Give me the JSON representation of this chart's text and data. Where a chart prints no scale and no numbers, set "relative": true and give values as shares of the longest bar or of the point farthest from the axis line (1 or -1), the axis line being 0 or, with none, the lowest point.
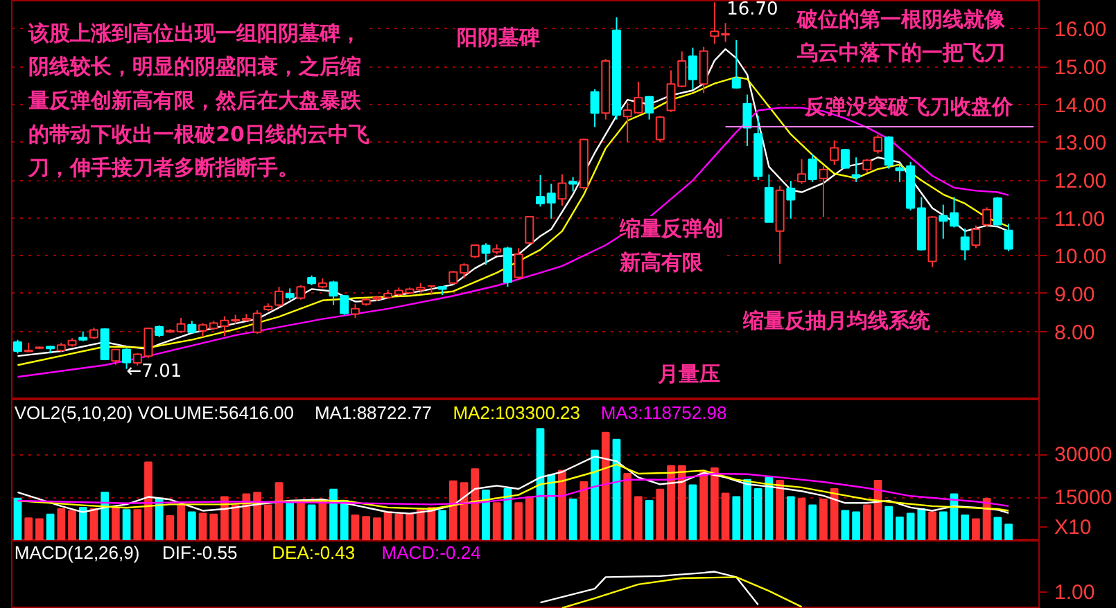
{
  "chart_data": [
    {
      "type": "candlestick",
      "categories": [
        null,
        null,
        null,
        null,
        null,
        null,
        null,
        null,
        null,
        null,
        null,
        null,
        null,
        null,
        null,
        null,
        null,
        null,
        null,
        null,
        null,
        null,
        null,
        null,
        null,
        null,
        null,
        null,
        null,
        null,
        null,
        null,
        null,
        null,
        null,
        null,
        null,
        null,
        null,
        null,
        null,
        null,
        null,
        null,
        null,
        null,
        null,
        null,
        null,
        null,
        null,
        null,
        null,
        null,
        null,
        null,
        null,
        null,
        null,
        null,
        null,
        null,
        null,
        null,
        null,
        null,
        null,
        null,
        null,
        null,
        null,
        null,
        null,
        null,
        null,
        null,
        null,
        null,
        null,
        null,
        null,
        null,
        null,
        null,
        null,
        null,
        null,
        null,
        null,
        null,
        null,
        null
      ],
      "ohlc": [
        [
          7.72,
          7.78,
          7.42,
          7.48
        ],
        [
          7.47,
          7.7,
          7.45,
          7.5
        ],
        [
          7.56,
          7.6,
          7.53,
          7.58
        ],
        [
          7.6,
          7.62,
          7.42,
          7.55
        ],
        [
          7.5,
          7.7,
          7.45,
          7.64
        ],
        [
          7.64,
          7.82,
          7.6,
          7.76
        ],
        [
          7.84,
          8.0,
          7.74,
          7.78
        ],
        [
          7.84,
          8.1,
          7.8,
          8.04
        ],
        [
          8.06,
          8.08,
          7.24,
          7.26
        ],
        [
          7.22,
          7.54,
          7.12,
          7.52
        ],
        [
          7.52,
          7.55,
          7.01,
          7.18
        ],
        [
          7.17,
          7.42,
          7.1,
          7.4
        ],
        [
          7.35,
          8.1,
          7.3,
          8.08
        ],
        [
          8.12,
          8.16,
          7.85,
          7.9
        ],
        [
          7.99,
          8.06,
          7.96,
          8.02
        ],
        [
          8.0,
          8.36,
          7.96,
          8.2
        ],
        [
          8.18,
          8.28,
          7.95,
          7.98
        ],
        [
          8.02,
          8.22,
          7.85,
          8.17
        ],
        [
          8.08,
          8.28,
          8.04,
          8.22
        ],
        [
          8.14,
          8.4,
          7.88,
          8.29
        ],
        [
          8.28,
          8.44,
          8.2,
          8.31
        ],
        [
          8.3,
          8.46,
          8.26,
          8.34
        ],
        [
          7.98,
          8.56,
          7.94,
          8.48
        ],
        [
          8.58,
          8.74,
          8.54,
          8.66
        ],
        [
          8.7,
          9.18,
          8.64,
          9.06
        ],
        [
          9.0,
          9.14,
          8.84,
          8.9
        ],
        [
          8.88,
          9.22,
          8.84,
          9.18
        ],
        [
          9.42,
          9.48,
          9.22,
          9.27
        ],
        [
          9.18,
          9.4,
          9.14,
          9.28
        ],
        [
          9.3,
          9.34,
          8.7,
          8.94
        ],
        [
          8.94,
          8.96,
          8.44,
          8.48
        ],
        [
          8.46,
          8.72,
          8.36,
          8.6
        ],
        [
          8.72,
          8.88,
          8.68,
          8.84
        ],
        [
          8.86,
          8.94,
          8.8,
          8.9
        ],
        [
          8.9,
          9.1,
          8.86,
          9.0
        ],
        [
          8.98,
          9.16,
          8.94,
          9.08
        ],
        [
          9.02,
          9.16,
          8.98,
          9.12
        ],
        [
          9.1,
          9.28,
          9.06,
          9.16
        ],
        [
          9.2,
          9.22,
          8.96,
          9.2
        ],
        [
          9.18,
          9.2,
          8.96,
          9.12
        ],
        [
          9.28,
          9.6,
          9.24,
          9.57
        ],
        [
          9.55,
          9.8,
          9.4,
          9.76
        ],
        [
          9.98,
          10.3,
          9.94,
          10.28
        ],
        [
          10.27,
          10.33,
          9.76,
          10.07
        ],
        [
          10.1,
          10.3,
          10.04,
          10.18
        ],
        [
          10.2,
          10.24,
          9.18,
          9.3
        ],
        [
          9.43,
          10.2,
          9.38,
          10.04
        ],
        [
          10.34,
          11.05,
          10.3,
          11.03
        ],
        [
          11.56,
          12.13,
          11.3,
          11.38
        ],
        [
          11.65,
          11.9,
          10.98,
          11.4
        ],
        [
          11.5,
          12.15,
          11.32,
          11.92
        ],
        [
          11.96,
          12.08,
          11.7,
          11.9
        ],
        [
          11.8,
          13.1,
          11.75,
          13.07
        ],
        [
          14.33,
          14.4,
          13.4,
          13.77
        ],
        [
          13.77,
          15.2,
          13.6,
          15.15
        ],
        [
          15.96,
          16.3,
          13.6,
          13.72
        ],
        [
          13.68,
          14.05,
          13.0,
          13.85
        ],
        [
          13.78,
          14.6,
          13.75,
          14.18
        ],
        [
          14.2,
          14.22,
          13.6,
          13.78
        ],
        [
          13.07,
          13.7,
          13.0,
          13.66
        ],
        [
          13.84,
          14.9,
          13.8,
          14.54
        ],
        [
          14.48,
          15.4,
          14.45,
          15.15
        ],
        [
          15.27,
          15.5,
          14.4,
          14.66
        ],
        [
          14.54,
          15.52,
          14.3,
          15.41
        ],
        [
          15.8,
          16.7,
          15.6,
          15.93
        ],
        [
          15.84,
          16.15,
          15.65,
          15.86
        ],
        [
          14.68,
          15.7,
          14.42,
          14.44
        ],
        [
          14.02,
          14.26,
          12.9,
          13.38
        ],
        [
          13.22,
          13.7,
          12.0,
          12.1
        ],
        [
          11.8,
          12.15,
          10.89,
          10.89
        ],
        [
          10.65,
          11.85,
          9.79,
          11.73
        ],
        [
          11.78,
          11.98,
          10.98,
          11.48
        ],
        [
          11.96,
          12.55,
          11.9,
          12.16
        ],
        [
          12.55,
          12.68,
          11.95,
          12.02
        ],
        [
          12.04,
          12.4,
          11.03,
          12.28
        ],
        [
          12.52,
          13.05,
          12.4,
          12.85
        ],
        [
          12.8,
          12.82,
          12.3,
          12.32
        ],
        [
          12.14,
          12.6,
          11.95,
          12.08
        ],
        [
          12.28,
          12.56,
          12.2,
          12.52
        ],
        [
          12.77,
          13.2,
          12.7,
          13.13
        ],
        [
          13.13,
          13.16,
          12.3,
          12.4
        ],
        [
          12.32,
          12.45,
          11.95,
          12.25
        ],
        [
          12.37,
          12.48,
          11.2,
          11.26
        ],
        [
          11.26,
          11.55,
          10.14,
          10.16
        ],
        [
          9.85,
          11.05,
          9.7,
          11.02
        ],
        [
          11.06,
          11.35,
          10.45,
          10.92
        ],
        [
          11.13,
          11.55,
          10.75,
          10.79
        ],
        [
          10.49,
          10.72,
          9.88,
          10.16
        ],
        [
          10.28,
          10.8,
          10.2,
          10.7
        ],
        [
          10.82,
          11.28,
          10.78,
          11.22
        ],
        [
          11.52,
          11.55,
          10.8,
          10.82
        ],
        [
          10.67,
          10.85,
          10.12,
          10.18
        ]
      ],
      "colors": [
        "#00ffff",
        "#ff3232",
        "#ff3232",
        "#00ffff",
        "#ff3232",
        "#ff3232",
        "#00ffff",
        "#ff3232",
        "#00ffff",
        "#ff3232",
        "#00ffff",
        "#ff3232",
        "#ff3232",
        "#00ffff",
        "#ff3232",
        "#ff3232",
        "#00ffff",
        "#ff3232",
        "#ff3232",
        "#ff3232",
        "#ff3232",
        "#ff3232",
        "#ff3232",
        "#ff3232",
        "#ff3232",
        "#00ffff",
        "#ff3232",
        "#00ffff",
        "#ff3232",
        "#00ffff",
        "#00ffff",
        "#ff3232",
        "#ff3232",
        "#ff3232",
        "#ff3232",
        "#ff3232",
        "#ff3232",
        "#ff3232",
        "#ff3232",
        "#00ffff",
        "#ff3232",
        "#ff3232",
        "#ff3232",
        "#00ffff",
        "#ff3232",
        "#00ffff",
        "#ff3232",
        "#ff3232",
        "#00ffff",
        "#00ffff",
        "#ff3232",
        "#00ffff",
        "#ff3232",
        "#00ffff",
        "#ff3232",
        "#00ffff",
        "#ff3232",
        "#ff3232",
        "#00ffff",
        "#ff3232",
        "#ff3232",
        "#ff3232",
        "#00ffff",
        "#ff3232",
        "#ff3232",
        "#ff3232",
        "#00ffff",
        "#00ffff",
        "#00ffff",
        "#00ffff",
        "#ff3232",
        "#00ffff",
        "#ff3232",
        "#00ffff",
        "#ff3232",
        "#ff3232",
        "#00ffff",
        "#00ffff",
        "#ff3232",
        "#ff3232",
        "#00ffff",
        "#00ffff",
        "#00ffff",
        "#00ffff",
        "#ff3232",
        "#00ffff",
        "#00ffff",
        "#00ffff",
        "#ff3232",
        "#ff3232",
        "#00ffff",
        "#00ffff"
      ],
      "series": [
        {
          "type": "line",
          "color": "#ffffff",
          "values": [
            7.35,
            null,
            null,
            null,
            7.48,
            null,
            null,
            null,
            7.72,
            null,
            7.6,
            null,
            7.54,
            7.66,
            null,
            null,
            7.96,
            null,
            null,
            8.15,
            null,
            null,
            8.33,
            null,
            8.63,
            null,
            null,
            9.12,
            null,
            9.06,
            null,
            8.79,
            null,
            8.82,
            null,
            8.96,
            null,
            null,
            9.12,
            null,
            9.24,
            null,
            9.67,
            null,
            9.98,
            null,
            10.04,
            null,
            10.52,
            10.7,
            null,
            11.62,
            null,
            12.72,
            13.21,
            13.7,
            14.12,
            null,
            14.0,
            null,
            14.24,
            null,
            14.37,
            14.55,
            15.16,
            15.46,
            15.22,
            14.79,
            13.57,
            12.35,
            null,
            11.74,
            11.68,
            null,
            11.92,
            null,
            12.35,
            null,
            12.47,
            12.6,
            null,
            12.47,
            12.05,
            null,
            11.26,
            null,
            10.89,
            10.65,
            null,
            10.8,
            10.77,
            10.65
          ]
        },
        {
          "type": "line",
          "color": "#ffff00",
          "values": [
            7.11,
            null,
            null,
            null,
            null,
            null,
            null,
            null,
            7.6,
            null,
            null,
            null,
            7.57,
            null,
            null,
            null,
            7.78,
            null,
            null,
            null,
            8.06,
            null,
            null,
            null,
            8.39,
            null,
            null,
            null,
            8.82,
            null,
            null,
            8.88,
            null,
            null,
            null,
            null,
            8.94,
            null,
            null,
            null,
            9.06,
            null,
            null,
            null,
            9.55,
            null,
            null,
            null,
            10.16,
            null,
            10.65,
            null,
            11.62,
            null,
            12.84,
            null,
            13.57,
            null,
            13.82,
            null,
            14.12,
            null,
            14.3,
            null,
            14.55,
            null,
            14.72,
            14.67,
            null,
            13.94,
            null,
            13.21,
            null,
            12.66,
            null,
            12.17,
            null,
            12.05,
            null,
            12.29,
            null,
            12.41,
            null,
            11.99,
            null,
            11.62,
            null,
            11.38,
            null,
            11.01,
            null,
            10.77
          ]
        },
        {
          "type": "line",
          "color": "#ff00ff",
          "values": [
            6.8,
            null,
            null,
            null,
            null,
            null,
            null,
            null,
            7.11,
            null,
            null,
            null,
            7.35,
            null,
            null,
            null,
            null,
            null,
            null,
            null,
            7.9,
            null,
            null,
            null,
            null,
            null,
            null,
            null,
            8.33,
            null,
            null,
            null,
            null,
            null,
            8.6,
            null,
            null,
            null,
            null,
            null,
            8.94,
            null,
            null,
            null,
            9.21,
            null,
            null,
            null,
            9.55,
            null,
            9.73,
            null,
            null,
            null,
            10.28,
            null,
            null,
            null,
            11.01,
            null,
            null,
            null,
            11.99,
            null,
            null,
            null,
            13.27,
            null,
            13.84,
            null,
            13.91,
            null,
            13.91,
            null,
            13.82,
            null,
            13.63,
            null,
            13.39,
            null,
            13.09,
            null,
            12.6,
            null,
            12.11,
            null,
            11.8,
            null,
            11.72,
            null,
            11.68,
            11.6
          ]
        }
      ],
      "ylim": [
        6.2,
        16.74
      ],
      "yticks": [
        {
          "value": 8,
          "label": "8.00"
        },
        {
          "value": 9,
          "label": "9.00"
        },
        {
          "value": 10,
          "label": "10.00"
        },
        {
          "value": 11,
          "label": "11.00"
        },
        {
          "value": 12,
          "label": "12.00"
        },
        {
          "value": 13,
          "label": "13.00"
        },
        {
          "value": 14,
          "label": "14.00"
        },
        {
          "value": 15,
          "label": "15.00"
        },
        {
          "value": 16,
          "label": "16.00"
        }
      ],
      "tick_labels": "y",
      "grid": "y",
      "line_style": "solid",
      "ref_lines": [
        {
          "axis": "y",
          "value": 13.41,
          "label": "反弹没突破飞刀收盘价",
          "color": "#ff80ff"
        }
      ],
      "annotations": [
        "该股上涨到高位出现一组阳阴墓碑，阴线较长，明显的阴盛阳衰，之后缩量反弹创新高有限，然后在大盘暴跌的带动下收出一根破20日线的云中飞刀，伸手接刀者多断指断手。",
        "阳阴墓碑",
        "破位的第一根阴线就像乌云中落下的一把飞刀",
        "缩量反弹创新高有限",
        "缩量反抽月均线系统",
        "16.70",
        "←7.01",
        "月量压"
      ]
    },
    {
      "type": "bar",
      "title": "VOL2(5,10,20) VOLUME:56416.00",
      "categories": [
        null,
        null,
        null,
        null,
        null,
        null,
        null,
        null,
        null,
        null,
        null,
        null,
        null,
        null,
        null,
        null,
        null,
        null,
        null,
        null,
        null,
        null,
        null,
        null,
        null,
        null,
        null,
        null,
        null,
        null,
        null,
        null,
        null,
        null,
        null,
        null,
        null,
        null,
        null,
        null,
        null,
        null,
        null,
        null,
        null,
        null,
        null,
        null,
        null,
        null,
        null,
        null,
        null,
        null,
        null,
        null,
        null,
        null,
        null,
        null,
        null,
        null,
        null,
        null,
        null,
        null,
        null,
        null,
        null,
        null,
        null,
        null,
        null,
        null,
        null,
        null,
        null,
        null,
        null,
        null,
        null,
        null,
        null,
        null,
        null,
        null,
        null,
        null,
        null,
        null,
        null,
        null
      ],
      "values": [
        14800,
        7900,
        7600,
        9200,
        11100,
        10500,
        11600,
        11100,
        16900,
        11600,
        10800,
        10800,
        27400,
        14800,
        8700,
        12400,
        10000,
        9500,
        9200,
        15300,
        12400,
        16300,
        16800,
        12400,
        20200,
        13200,
        14000,
        12400,
        14000,
        17900,
        14000,
        8900,
        8400,
        7900,
        10000,
        9200,
        9200,
        10800,
        11600,
        10500,
        20800,
        20200,
        25000,
        17600,
        13200,
        18100,
        13200,
        15300,
        39000,
        22900,
        24500,
        14500,
        20500,
        31500,
        37700,
        35300,
        23400,
        15300,
        14000,
        17900,
        26100,
        26100,
        19400,
        24000,
        25300,
        16500,
        15300,
        21300,
        18100,
        22100,
        21000,
        15300,
        14800,
        12400,
        14500,
        18100,
        10500,
        10000,
        12400,
        21000,
        11900,
        8200,
        9500,
        11100,
        10000,
        10000,
        16300,
        8900,
        7600,
        14700,
        8100,
        5700
      ],
      "colors": [
        "#00ffff",
        "#ff3232",
        "#ff3232",
        "#00ffff",
        "#ff3232",
        "#ff3232",
        "#00ffff",
        "#ff3232",
        "#00ffff",
        "#ff3232",
        "#00ffff",
        "#ff3232",
        "#ff3232",
        "#00ffff",
        "#ff3232",
        "#ff3232",
        "#00ffff",
        "#ff3232",
        "#ff3232",
        "#ff3232",
        "#ff3232",
        "#ff3232",
        "#ff3232",
        "#ff3232",
        "#ff3232",
        "#00ffff",
        "#ff3232",
        "#00ffff",
        "#ff3232",
        "#00ffff",
        "#00ffff",
        "#ff3232",
        "#ff3232",
        "#ff3232",
        "#ff3232",
        "#ff3232",
        "#ff3232",
        "#ff3232",
        "#ff3232",
        "#00ffff",
        "#ff3232",
        "#ff3232",
        "#ff3232",
        "#00ffff",
        "#ff3232",
        "#00ffff",
        "#ff3232",
        "#ff3232",
        "#00ffff",
        "#00ffff",
        "#ff3232",
        "#00ffff",
        "#ff3232",
        "#00ffff",
        "#ff3232",
        "#00ffff",
        "#ff3232",
        "#ff3232",
        "#00ffff",
        "#ff3232",
        "#ff3232",
        "#ff3232",
        "#00ffff",
        "#ff3232",
        "#ff3232",
        "#ff3232",
        "#00ffff",
        "#00ffff",
        "#00ffff",
        "#00ffff",
        "#ff3232",
        "#00ffff",
        "#ff3232",
        "#00ffff",
        "#ff3232",
        "#ff3232",
        "#00ffff",
        "#00ffff",
        "#ff3232",
        "#ff3232",
        "#00ffff",
        "#00ffff",
        "#00ffff",
        "#00ffff",
        "#ff3232",
        "#00ffff",
        "#00ffff",
        "#00ffff",
        "#ff3232",
        "#ff3232",
        "#00ffff",
        "#00ffff"
      ],
      "series": [
        {
          "type": "line",
          "name": "MA1:88722.77",
          "color": "#ffffff",
          "values": [
            16900,
            null,
            null,
            null,
            12100,
            null,
            10000,
            null,
            11600,
            null,
            12700,
            null,
            15300,
            null,
            14400,
            null,
            null,
            10500,
            null,
            11100,
            null,
            null,
            12700,
            null,
            null,
            14000,
            null,
            null,
            14400,
            null,
            null,
            12400,
            null,
            null,
            10000,
            null,
            9500,
            null,
            10500,
            null,
            12400,
            null,
            18100,
            null,
            19200,
            null,
            18100,
            null,
            22100,
            null,
            24000,
            null,
            null,
            29400,
            null,
            27700,
            null,
            22100,
            null,
            19700,
            null,
            20500,
            null,
            23700,
            null,
            22100,
            null,
            19700,
            null,
            18900,
            null,
            null,
            17300,
            null,
            15700,
            null,
            13200,
            null,
            13200,
            null,
            14000,
            null,
            11600,
            null,
            10500,
            null,
            12100,
            null,
            11600,
            null,
            10800,
            9700
          ]
        },
        {
          "type": "line",
          "name": "MA2:103300.23",
          "color": "#ffff00",
          "values": [
            14000,
            null,
            null,
            null,
            null,
            null,
            12400,
            null,
            null,
            null,
            11500,
            null,
            null,
            null,
            12700,
            null,
            null,
            null,
            null,
            12700,
            null,
            null,
            null,
            null,
            13700,
            null,
            null,
            null,
            null,
            null,
            14000,
            null,
            null,
            null,
            11600,
            null,
            null,
            null,
            11100,
            null,
            null,
            null,
            13700,
            null,
            null,
            null,
            16000,
            null,
            19700,
            null,
            20800,
            null,
            null,
            24000,
            null,
            26600,
            null,
            23400,
            null,
            null,
            23700,
            null,
            null,
            24500,
            null,
            null,
            21300,
            null,
            null,
            19700,
            null,
            null,
            18600,
            null,
            null,
            16500,
            null,
            null,
            14400,
            null,
            null,
            13200,
            null,
            null,
            12100,
            null,
            null,
            11600,
            null,
            null,
            11100,
            10500
          ]
        },
        {
          "type": "line",
          "name": "MA3:118752.98",
          "color": "#ff00ff",
          "values": [
            14000,
            null,
            null,
            null,
            null,
            null,
            null,
            null,
            null,
            null,
            13100,
            null,
            null,
            null,
            null,
            null,
            null,
            null,
            null,
            null,
            13700,
            null,
            null,
            null,
            null,
            null,
            null,
            null,
            null,
            null,
            13200,
            null,
            null,
            null,
            null,
            null,
            null,
            null,
            12700,
            null,
            null,
            null,
            13200,
            null,
            null,
            null,
            14800,
            null,
            15600,
            null,
            15600,
            null,
            null,
            18900,
            null,
            null,
            21300,
            null,
            null,
            null,
            21300,
            null,
            null,
            null,
            23400,
            null,
            null,
            23200,
            null,
            null,
            22100,
            null,
            null,
            null,
            20500,
            null,
            null,
            null,
            18400,
            null,
            null,
            null,
            15600,
            null,
            null,
            null,
            14300,
            null,
            13700,
            null,
            12700,
            12100
          ]
        }
      ],
      "ylim": [
        0,
        49200
      ],
      "yticks": [
        15000,
        30000
      ],
      "tick_labels": "y",
      "grid": "y",
      "legend": "top left",
      "annotations": [
        "X10"
      ]
    },
    {
      "type": "line",
      "title": "MACD(12,26,9)",
      "categories": [
        null,
        null,
        null,
        null,
        null,
        null,
        null,
        null,
        null,
        null,
        null,
        null,
        null,
        null,
        null,
        null,
        null,
        null,
        null,
        null,
        null,
        null,
        null,
        null,
        null,
        null,
        null,
        null,
        null,
        null,
        null,
        null,
        null,
        null,
        null,
        null,
        null,
        null,
        null,
        null,
        null,
        null,
        null,
        null,
        null,
        null,
        null,
        null,
        null,
        null,
        null,
        null,
        null,
        null,
        null,
        null,
        null,
        null,
        null,
        null,
        null,
        null,
        null,
        null,
        null,
        null,
        null,
        null,
        null,
        null,
        null,
        null,
        null,
        null,
        null,
        null,
        null,
        null,
        null,
        null,
        null,
        null,
        null,
        null,
        null,
        null,
        null,
        null,
        null,
        null,
        null,
        null
      ],
      "series": [
        {
          "name": "DIF:-0.55",
          "color": "#ffffff",
          "values": [
            null,
            null,
            null,
            null,
            null,
            null,
            null,
            null,
            null,
            null,
            null,
            null,
            null,
            null,
            null,
            null,
            null,
            null,
            null,
            null,
            null,
            null,
            null,
            null,
            null,
            null,
            null,
            null,
            null,
            null,
            null,
            null,
            null,
            null,
            null,
            null,
            null,
            null,
            null,
            null,
            null,
            null,
            null,
            null,
            null,
            null,
            null,
            null,
            0.15,
            null,
            null,
            null,
            null,
            0.53,
            0.85,
            null,
            null,
            null,
            null,
            0.88,
            null,
            null,
            null,
            0.97,
            1,
            null,
            0.85,
            null,
            0.09,
            null,
            null,
            null,
            null,
            null,
            null,
            null,
            null,
            null,
            null,
            null,
            null,
            null,
            null,
            null,
            null,
            null,
            null,
            null,
            null,
            null,
            null,
            null
          ]
        },
        {
          "name": "DEA:-0.43",
          "color": "#ffff00",
          "values": [
            null,
            null,
            null,
            null,
            null,
            null,
            null,
            null,
            null,
            null,
            null,
            null,
            null,
            null,
            null,
            null,
            null,
            null,
            null,
            null,
            null,
            null,
            null,
            null,
            null,
            null,
            null,
            null,
            null,
            null,
            null,
            null,
            null,
            null,
            null,
            null,
            null,
            null,
            null,
            null,
            null,
            null,
            null,
            null,
            null,
            null,
            null,
            null,
            null,
            null,
            0,
            null,
            null,
            0.27,
            null,
            null,
            null,
            0.65,
            null,
            null,
            null,
            0.82,
            null,
            null,
            null,
            null,
            0.85,
            null,
            null,
            0.47,
            null,
            null,
            0.03,
            null,
            null,
            null,
            null,
            null,
            null,
            null,
            null,
            null,
            null,
            null,
            null,
            null,
            null,
            null,
            null,
            null,
            null,
            null
          ]
        }
      ],
      "relative": true,
      "legend": "top left",
      "annotations": [
        "MACD:-0.24",
        "1.00"
      ]
    }
  ]
}
